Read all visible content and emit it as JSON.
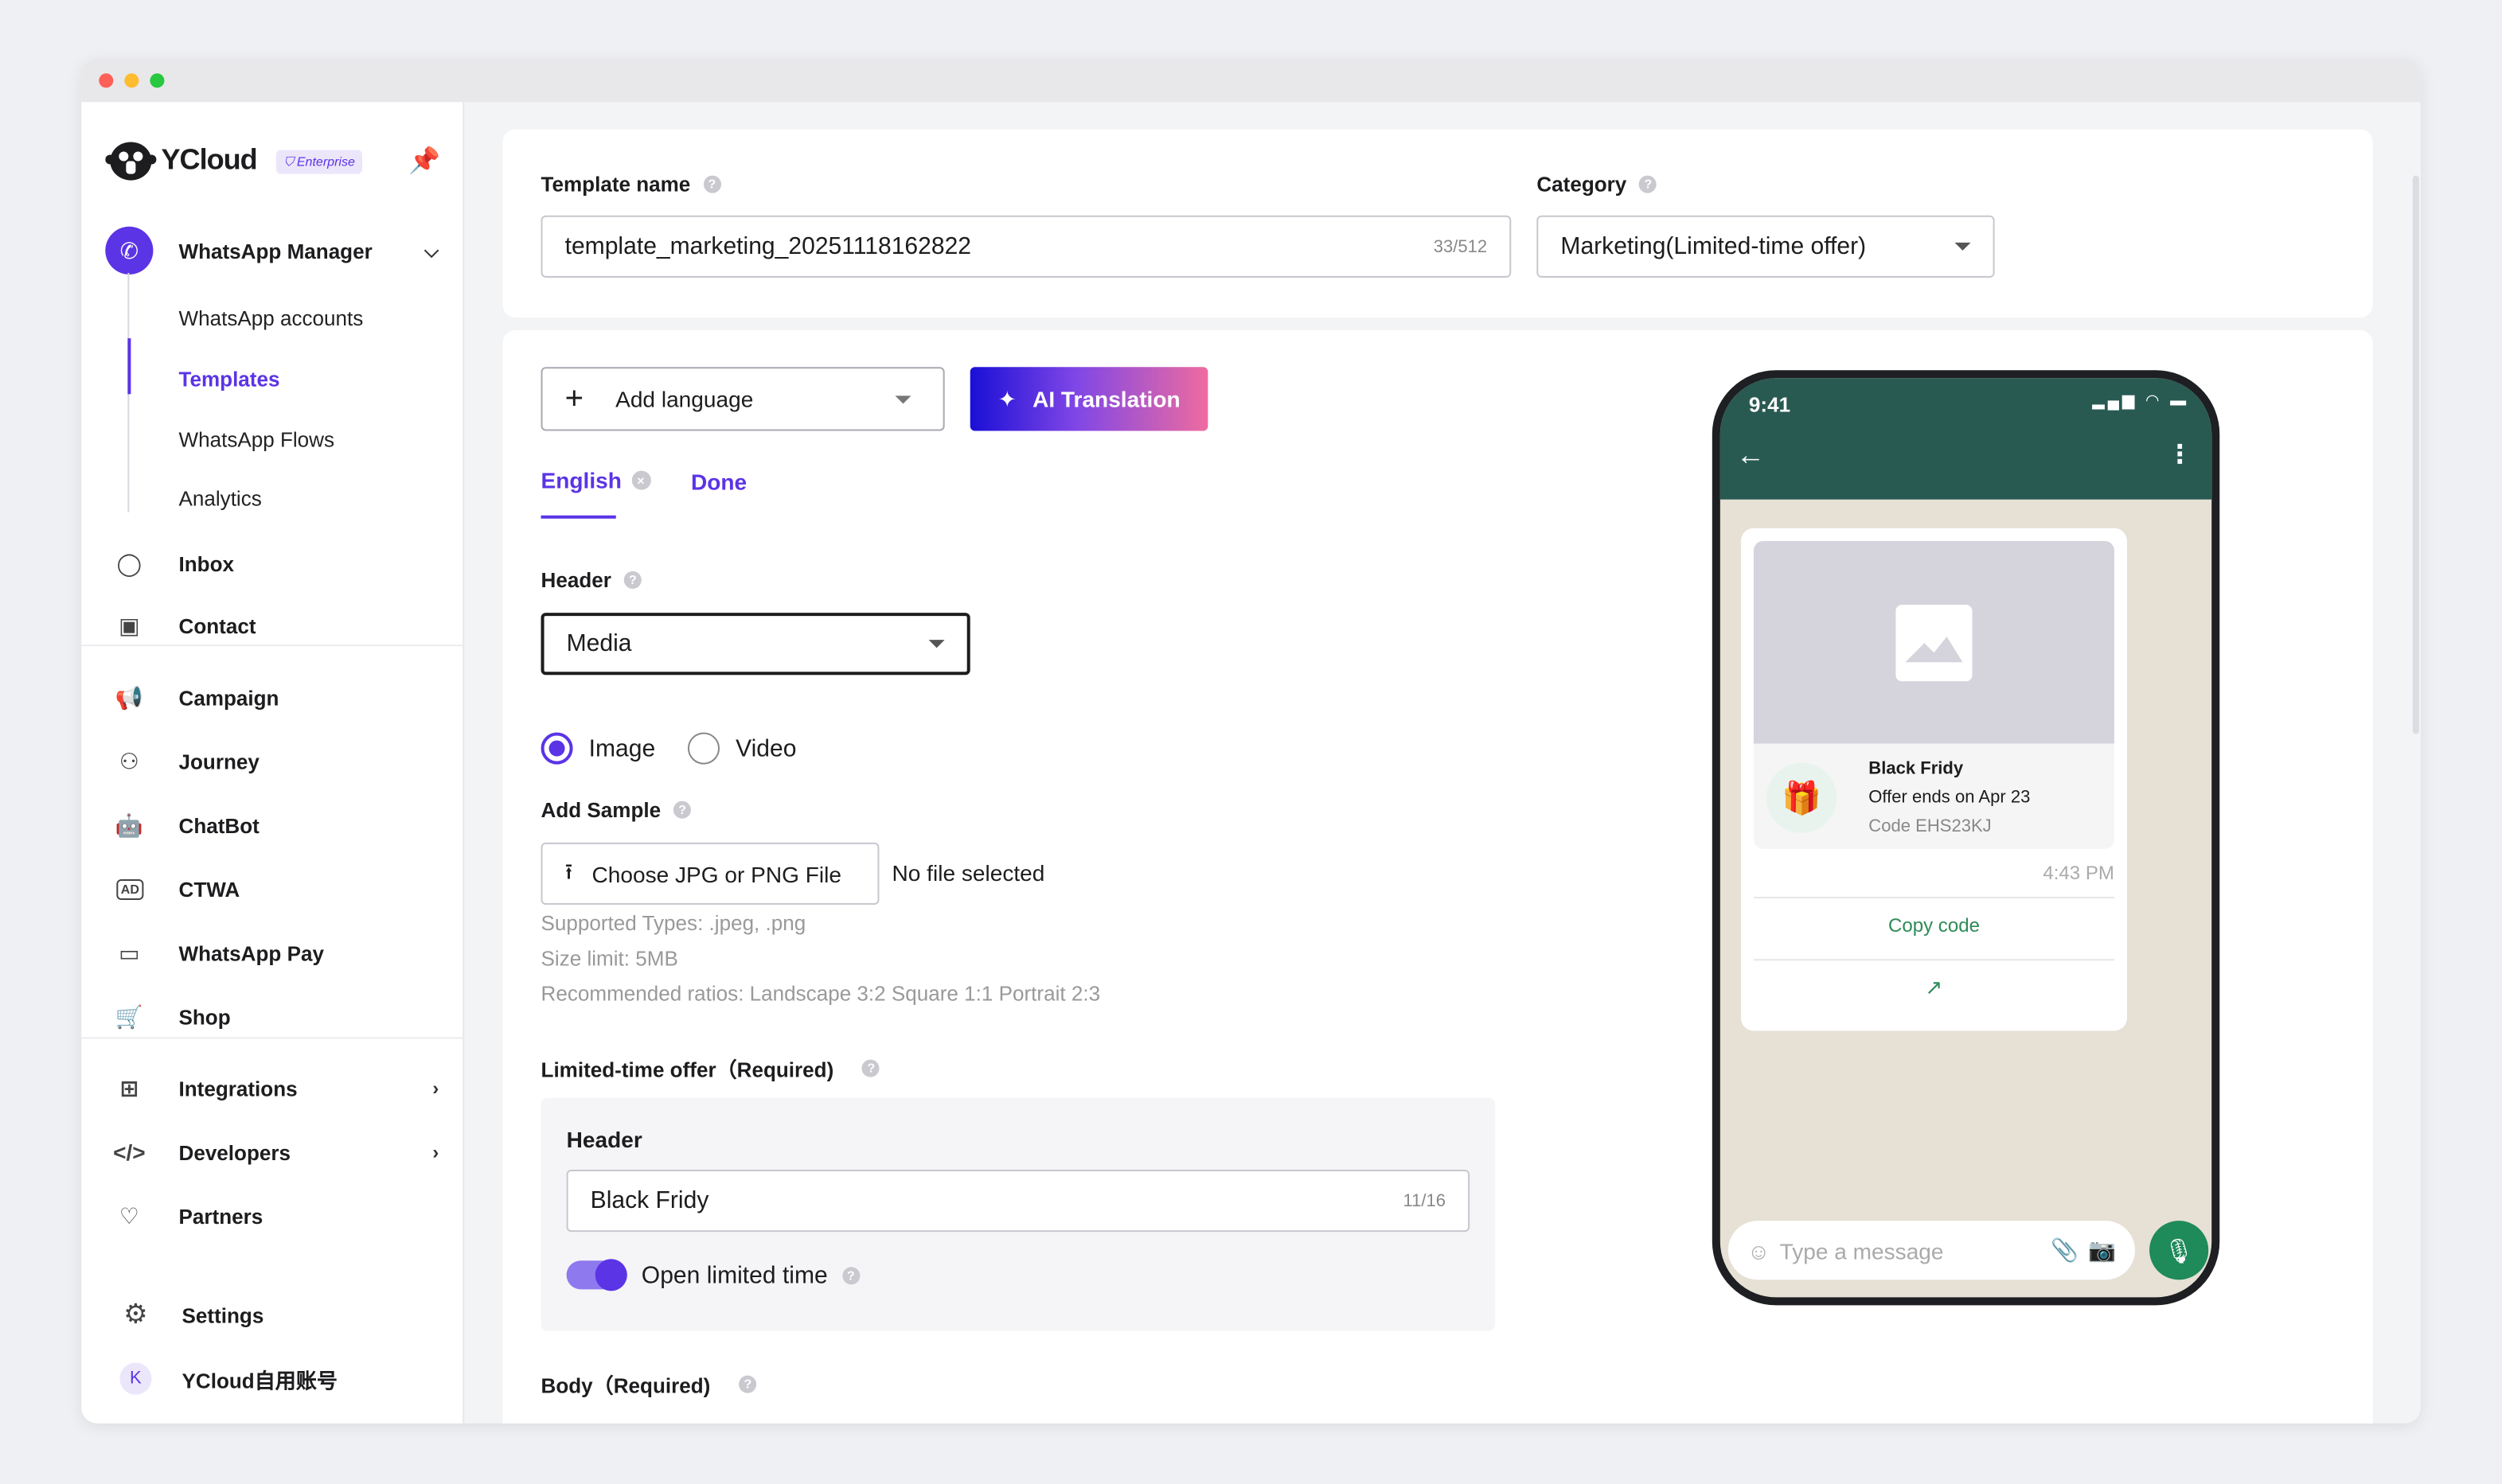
{
  "brand": {
    "name": "YCloud",
    "badge": "Enterprise"
  },
  "sidebar": {
    "manager": {
      "label": "WhatsApp Manager"
    },
    "sub_items": [
      {
        "label": "WhatsApp accounts"
      },
      {
        "label": "Templates",
        "active": true
      },
      {
        "label": "WhatsApp Flows"
      },
      {
        "label": "Analytics"
      }
    ],
    "items": [
      {
        "label": "Inbox"
      },
      {
        "label": "Contact"
      },
      {
        "label": "Campaign"
      },
      {
        "label": "Journey"
      },
      {
        "label": "ChatBot"
      },
      {
        "label": "CTWA"
      },
      {
        "label": "WhatsApp Pay"
      },
      {
        "label": "Shop"
      },
      {
        "label": "Integrations"
      },
      {
        "label": "Developers"
      },
      {
        "label": "Partners"
      }
    ],
    "settings": {
      "label": "Settings"
    },
    "account": {
      "initial": "K",
      "label": "YCloud自用账号"
    }
  },
  "form": {
    "template_name": {
      "label": "Template name",
      "value": "template_marketing_20251118162822",
      "counter": "33/512"
    },
    "category": {
      "label": "Category",
      "value": "Marketing(Limited-time offer)"
    },
    "add_language": "Add language",
    "ai_translation": "AI Translation",
    "tabs": [
      {
        "label": "English",
        "active": true
      },
      {
        "label": "Done"
      }
    ],
    "header": {
      "label": "Header",
      "value": "Media"
    },
    "media_options": [
      {
        "label": "Image",
        "selected": true
      },
      {
        "label": "Video",
        "selected": false
      }
    ],
    "add_sample": {
      "label": "Add Sample",
      "button": "Choose JPG or PNG File",
      "status": "No file selected",
      "hints": [
        "Supported Types: .jpeg, .png",
        "Size limit: 5MB",
        "Recommended ratios: Landscape 3:2 Square 1:1 Portrait 2:3"
      ]
    },
    "lto": {
      "label": "Limited-time offer（Required)",
      "header_label": "Header",
      "header_value": "Black Fridy",
      "header_counter": "11/16",
      "toggle_label": "Open limited time",
      "toggle_on": true
    },
    "body": {
      "label": "Body（Required)"
    }
  },
  "preview": {
    "time": "9:41",
    "offer_title": "Black Fridy",
    "offer_ends": "Offer ends on Apr 23",
    "code": "Code EHS23KJ",
    "msg_time": "4:43 PM",
    "copy_code": "Copy code",
    "input_placeholder": "Type a message"
  },
  "colors": {
    "accent": "#5b34e6",
    "wa_green": "#285a52",
    "chat_bg": "#e6e0d5"
  }
}
